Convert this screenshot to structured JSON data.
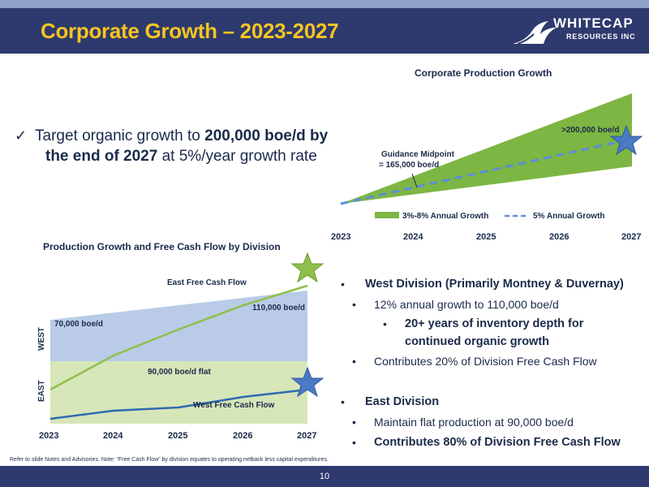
{
  "header": {
    "title": "Corporate Growth – 2023-2027",
    "logo": {
      "line1": "WHITECAP",
      "line2": "RESOURCES INC"
    }
  },
  "target": {
    "line1_pre": "Target organic growth to ",
    "line1_bold": "200,000 boe/d by",
    "line2_bold": "the end of 2027",
    "line2_post": " at 5%/year growth rate"
  },
  "colors": {
    "navy": "#2e3a6e",
    "gold": "#f7c520",
    "green_band": "#7db643",
    "dash_blue": "#5b8fd6",
    "west_fill": "#b9cbe7",
    "east_fill": "#d6e6b9",
    "star_blue": "#4a7ac2",
    "star_green": "#8fbf4a"
  },
  "chart_data": [
    {
      "type": "area",
      "title": "Corporate Production Growth",
      "x": [
        "2023",
        "2024",
        "2025",
        "2026",
        "2027"
      ],
      "series": [
        {
          "name": "3%-8% Annual Growth",
          "kind": "band",
          "low_growth_pct": 3,
          "high_growth_pct": 8
        },
        {
          "name": "5% Annual Growth",
          "kind": "dashed-line",
          "growth_pct": 5
        }
      ],
      "annotations": [
        {
          "label_line1": "Guidance Midpoint",
          "label_line2": "= 165,000 boe/d",
          "x": "2023"
        },
        {
          "label": ">200,000 boe/d",
          "x": "2027"
        }
      ],
      "legend": "bottom"
    },
    {
      "type": "area",
      "title": "Production Growth and Free Cash Flow by Division",
      "x": [
        "2023",
        "2024",
        "2025",
        "2026",
        "2027"
      ],
      "areas": [
        {
          "name": "WEST",
          "start_label": "70,000 boe/d",
          "end_label": "110,000 boe/d"
        },
        {
          "name": "EAST",
          "label": "90,000 boe/d flat"
        }
      ],
      "lines": [
        {
          "name": "East Free Cash Flow"
        },
        {
          "name": "West Free Cash Flow"
        }
      ]
    }
  ],
  "divisions": {
    "west": {
      "heading": "West Division (Primarily Montney & Duvernay)",
      "points": [
        "12% annual growth to 110,000 boe/d",
        "Contributes 20% of Division Free Cash Flow"
      ],
      "sub_bold_line1": "20+ years of inventory depth for",
      "sub_bold_line2": "continued organic growth"
    },
    "east": {
      "heading": "East Division",
      "points": [
        "Maintain flat production at 90,000 boe/d"
      ],
      "bold_point": "Contributes 80% of Division Free Cash Flow"
    }
  },
  "footnote": "Refer to slide Notes and Advisories. Note: “Free Cash Flow” by division equates to operating netback less capital expenditures.",
  "page_number": "10"
}
